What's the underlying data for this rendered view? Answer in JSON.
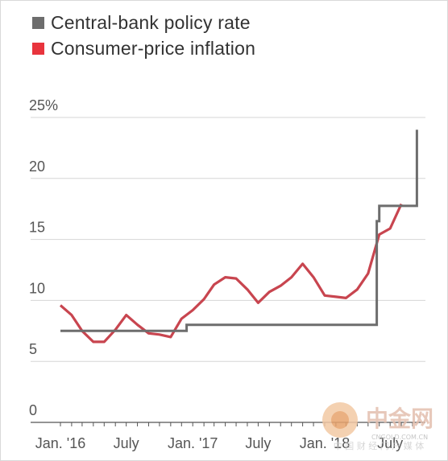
{
  "legend": [
    {
      "label": "Central-bank policy rate",
      "color": "#6d6d6d"
    },
    {
      "label": "Consumer-price inflation",
      "color": "#e8343d"
    }
  ],
  "chart_data": {
    "type": "line",
    "y_tick_labels": [
      "25%",
      "20",
      "15",
      "10",
      "5",
      "0"
    ],
    "y_ticks": [
      25,
      20,
      15,
      10,
      5,
      0
    ],
    "ylim": [
      0,
      25
    ],
    "grid": true,
    "legend_position": "top-left",
    "x_tick_labels": [
      {
        "label": "Jan. '16",
        "date": "2016-01"
      },
      {
        "label": "July",
        "date": "2016-07"
      },
      {
        "label": "Jan. '17",
        "date": "2017-01"
      },
      {
        "label": "July",
        "date": "2017-07"
      },
      {
        "label": "Jan. '18",
        "date": "2018-01"
      },
      {
        "label": "July",
        "date": "2018-07"
      }
    ],
    "series": [
      {
        "name": "Central-bank policy rate",
        "color": "#6d6d6d",
        "step": true,
        "points": [
          {
            "x": "2016-01-01",
            "y": 7.5
          },
          {
            "x": "2016-12-15",
            "y": 7.5
          },
          {
            "x": "2016-12-15",
            "y": 8.0
          },
          {
            "x": "2018-05-25",
            "y": 8.0
          },
          {
            "x": "2018-05-25",
            "y": 16.5
          },
          {
            "x": "2018-06-01",
            "y": 16.5
          },
          {
            "x": "2018-06-01",
            "y": 17.75
          },
          {
            "x": "2018-09-13",
            "y": 17.75
          },
          {
            "x": "2018-09-13",
            "y": 24.0
          }
        ]
      },
      {
        "name": "Consumer-price inflation",
        "color": "#c8454f",
        "points": [
          {
            "x": "2016-01",
            "y": 9.6
          },
          {
            "x": "2016-02",
            "y": 8.8
          },
          {
            "x": "2016-03",
            "y": 7.5
          },
          {
            "x": "2016-04",
            "y": 6.6
          },
          {
            "x": "2016-05",
            "y": 6.6
          },
          {
            "x": "2016-06",
            "y": 7.6
          },
          {
            "x": "2016-07",
            "y": 8.8
          },
          {
            "x": "2016-08",
            "y": 8.0
          },
          {
            "x": "2016-09",
            "y": 7.3
          },
          {
            "x": "2016-10",
            "y": 7.2
          },
          {
            "x": "2016-11",
            "y": 7.0
          },
          {
            "x": "2016-12",
            "y": 8.5
          },
          {
            "x": "2017-01",
            "y": 9.2
          },
          {
            "x": "2017-02",
            "y": 10.1
          },
          {
            "x": "2017-03",
            "y": 11.3
          },
          {
            "x": "2017-04",
            "y": 11.9
          },
          {
            "x": "2017-05",
            "y": 11.8
          },
          {
            "x": "2017-06",
            "y": 10.9
          },
          {
            "x": "2017-07",
            "y": 9.8
          },
          {
            "x": "2017-08",
            "y": 10.7
          },
          {
            "x": "2017-09",
            "y": 11.2
          },
          {
            "x": "2017-10",
            "y": 11.9
          },
          {
            "x": "2017-11",
            "y": 13.0
          },
          {
            "x": "2017-12",
            "y": 11.9
          },
          {
            "x": "2018-01",
            "y": 10.4
          },
          {
            "x": "2018-02",
            "y": 10.3
          },
          {
            "x": "2018-03",
            "y": 10.2
          },
          {
            "x": "2018-04",
            "y": 10.9
          },
          {
            "x": "2018-05",
            "y": 12.2
          },
          {
            "x": "2018-06",
            "y": 15.4
          },
          {
            "x": "2018-07",
            "y": 15.9
          },
          {
            "x": "2018-08",
            "y": 17.9
          }
        ]
      }
    ]
  },
  "watermark": {
    "brand": "中金网",
    "url": "CNGOLD.COM.CN",
    "tagline": "中 国 财 经 门 户 媒 体"
  }
}
